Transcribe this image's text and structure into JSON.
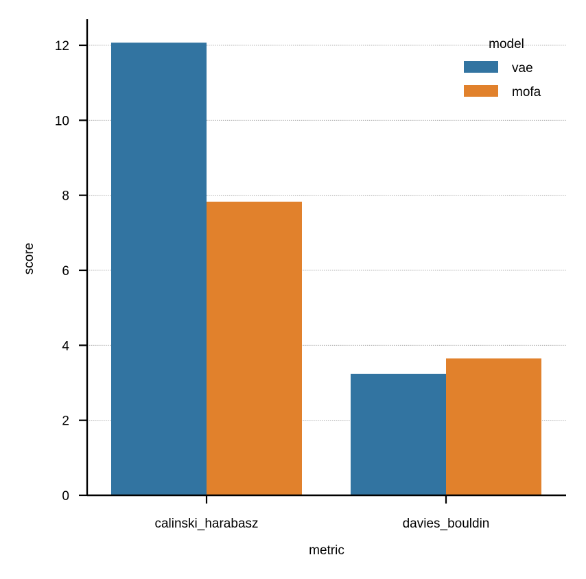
{
  "chart_data": {
    "type": "bar",
    "title": "",
    "xlabel": "metric",
    "ylabel": "score",
    "categories": [
      "calinski_harabasz",
      "davies_bouldin"
    ],
    "series": [
      {
        "name": "vae",
        "values": [
          12.07,
          3.24
        ],
        "color": "#3274a1"
      },
      {
        "name": "mofa",
        "values": [
          7.83,
          3.65
        ],
        "color": "#e1812c"
      }
    ],
    "ylim": [
      0,
      12.7
    ],
    "yticks": [
      0,
      2,
      4,
      6,
      8,
      10,
      12
    ],
    "grid": "horizontal dotted",
    "legend": {
      "title": "model",
      "placement": "top-right"
    }
  }
}
